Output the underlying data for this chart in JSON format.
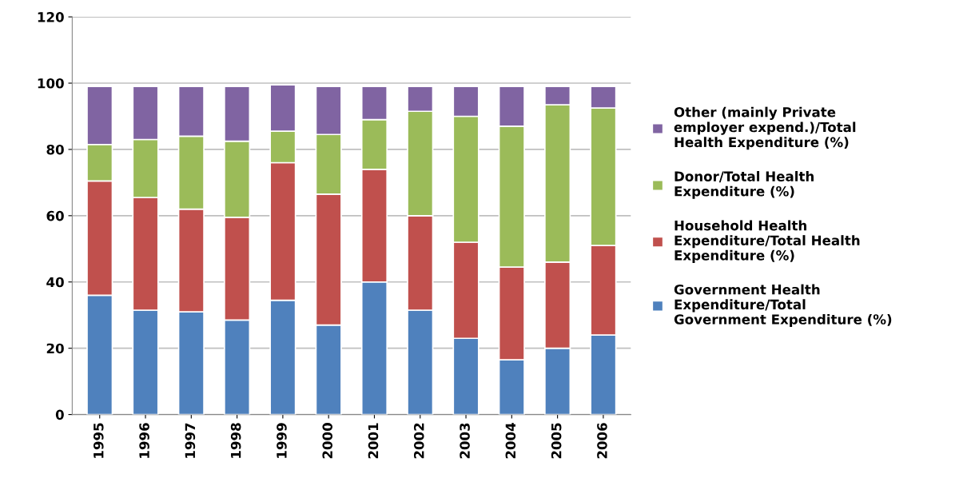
{
  "chart_data": {
    "type": "bar",
    "stacked": true,
    "categories": [
      "1995",
      "1996",
      "1997",
      "1998",
      "1999",
      "2000",
      "2001",
      "2002",
      "2003",
      "2004",
      "2005",
      "2006"
    ],
    "series": [
      {
        "name": "Government Health\nExpenditure/Total\nGovernment Expenditure (%)",
        "color": "#4f81bd",
        "values": [
          36,
          31.5,
          31,
          28.5,
          34.5,
          27,
          40,
          31.5,
          23,
          16.5,
          20,
          24
        ]
      },
      {
        "name": "Household Health\nExpenditure/Total Health\nExpenditure (%)",
        "color": "#c0504d",
        "values": [
          34.5,
          34,
          31,
          31,
          41.5,
          39.5,
          34,
          28.5,
          29,
          28,
          26,
          27
        ]
      },
      {
        "name": "Donor/Total Health\nExpenditure (%)",
        "color": "#9bbb59",
        "values": [
          11,
          17.5,
          22,
          23,
          9.5,
          18,
          15,
          31.5,
          38,
          42.5,
          47.5,
          41.5
        ]
      },
      {
        "name": "Other (mainly Private\nemployer expend.)/Total\nHealth Expenditure (%)",
        "color": "#8064a2",
        "values": [
          17.5,
          16,
          15,
          16.5,
          14,
          14.5,
          10,
          7.5,
          9,
          12,
          5.5,
          6.5
        ]
      }
    ],
    "ylim": [
      0,
      120
    ],
    "yticks": [
      0,
      20,
      40,
      60,
      80,
      100,
      120
    ],
    "grid": "y",
    "legend": "right"
  }
}
